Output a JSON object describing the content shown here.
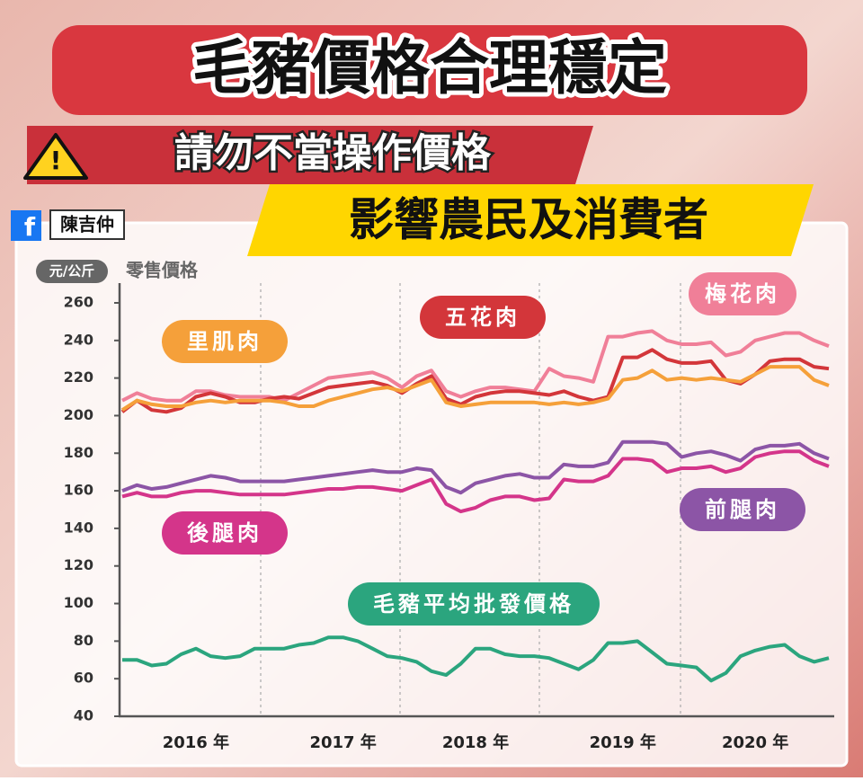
{
  "header": {
    "title": "毛豬價格合理穩定",
    "subtitle": "請勿不當操作價格",
    "banner": "影響農民及消費者",
    "author": "陳吉仲"
  },
  "chart_data": {
    "type": "line",
    "y_unit": "元/公斤",
    "y_label": "零售價格",
    "categories": [
      null,
      null,
      null,
      null,
      null,
      "2016 年",
      null,
      null,
      null,
      null,
      null,
      null,
      null,
      null,
      null,
      "2017 年",
      null,
      null,
      null,
      null,
      null,
      null,
      null,
      null,
      "2018 年",
      null,
      null,
      null,
      null,
      null,
      null,
      null,
      null,
      null,
      "2019 年",
      null,
      null,
      null,
      null,
      null,
      null,
      null,
      null,
      "2020 年",
      null,
      null,
      null,
      null,
      null
    ],
    "ylim": [
      40,
      260
    ],
    "yticks": [
      40,
      60,
      80,
      100,
      120,
      140,
      160,
      180,
      200,
      220,
      240,
      260
    ],
    "series": [
      {
        "name": "梅花肉",
        "color": "#f07f98",
        "values": [
          208,
          212,
          209,
          208,
          208,
          213,
          213,
          211,
          210,
          210,
          210,
          208,
          212,
          216,
          220,
          221,
          222,
          223,
          220,
          215,
          221,
          224,
          213,
          210,
          213,
          215,
          215,
          214,
          213,
          225,
          221,
          220,
          218,
          242,
          242,
          244,
          245,
          240,
          238,
          238,
          239,
          232,
          234,
          240,
          242,
          244,
          244,
          240,
          237
        ]
      },
      {
        "name": "五花肉",
        "color": "#d3363a",
        "values": [
          202,
          208,
          203,
          202,
          204,
          210,
          212,
          210,
          207,
          207,
          209,
          210,
          209,
          212,
          215,
          216,
          217,
          218,
          216,
          212,
          217,
          221,
          209,
          206,
          210,
          212,
          213,
          213,
          212,
          211,
          213,
          210,
          208,
          210,
          231,
          231,
          235,
          230,
          228,
          228,
          229,
          219,
          217,
          222,
          229,
          230,
          230,
          226,
          225
        ]
      },
      {
        "name": "里肌肉",
        "color": "#f5a03a",
        "values": [
          203,
          208,
          206,
          205,
          205,
          207,
          208,
          207,
          208,
          208,
          208,
          207,
          205,
          205,
          208,
          210,
          212,
          214,
          215,
          213,
          216,
          219,
          207,
          205,
          206,
          207,
          207,
          207,
          207,
          206,
          207,
          206,
          207,
          209,
          219,
          220,
          224,
          219,
          220,
          219,
          220,
          219,
          218,
          222,
          226,
          226,
          226,
          219,
          216
        ]
      },
      {
        "name": "前腿肉",
        "color": "#8c55a6",
        "values": [
          160,
          163,
          161,
          162,
          164,
          166,
          168,
          167,
          165,
          165,
          165,
          165,
          166,
          167,
          168,
          169,
          170,
          171,
          170,
          170,
          172,
          171,
          162,
          159,
          164,
          166,
          168,
          169,
          167,
          167,
          174,
          173,
          173,
          175,
          186,
          186,
          186,
          185,
          178,
          180,
          181,
          179,
          176,
          182,
          184,
          184,
          185,
          180,
          177
        ]
      },
      {
        "name": "後腿肉",
        "color": "#d4358a",
        "values": [
          157,
          159,
          157,
          157,
          159,
          160,
          160,
          159,
          158,
          158,
          158,
          158,
          159,
          160,
          161,
          161,
          162,
          162,
          161,
          160,
          163,
          166,
          153,
          149,
          151,
          155,
          157,
          157,
          155,
          156,
          166,
          165,
          165,
          168,
          177,
          177,
          176,
          170,
          172,
          172,
          173,
          170,
          172,
          178,
          180,
          181,
          181,
          176,
          173
        ]
      },
      {
        "name": "毛豬平均批發價格",
        "color": "#2ba57e",
        "values": [
          70,
          70,
          67,
          68,
          73,
          76,
          72,
          71,
          72,
          76,
          76,
          76,
          78,
          79,
          82,
          82,
          80,
          76,
          72,
          71,
          69,
          64,
          62,
          68,
          76,
          76,
          73,
          72,
          72,
          71,
          68,
          65,
          70,
          79,
          79,
          80,
          74,
          68,
          67,
          66,
          59,
          63,
          72,
          75,
          77,
          78,
          72,
          69,
          71
        ]
      }
    ]
  }
}
